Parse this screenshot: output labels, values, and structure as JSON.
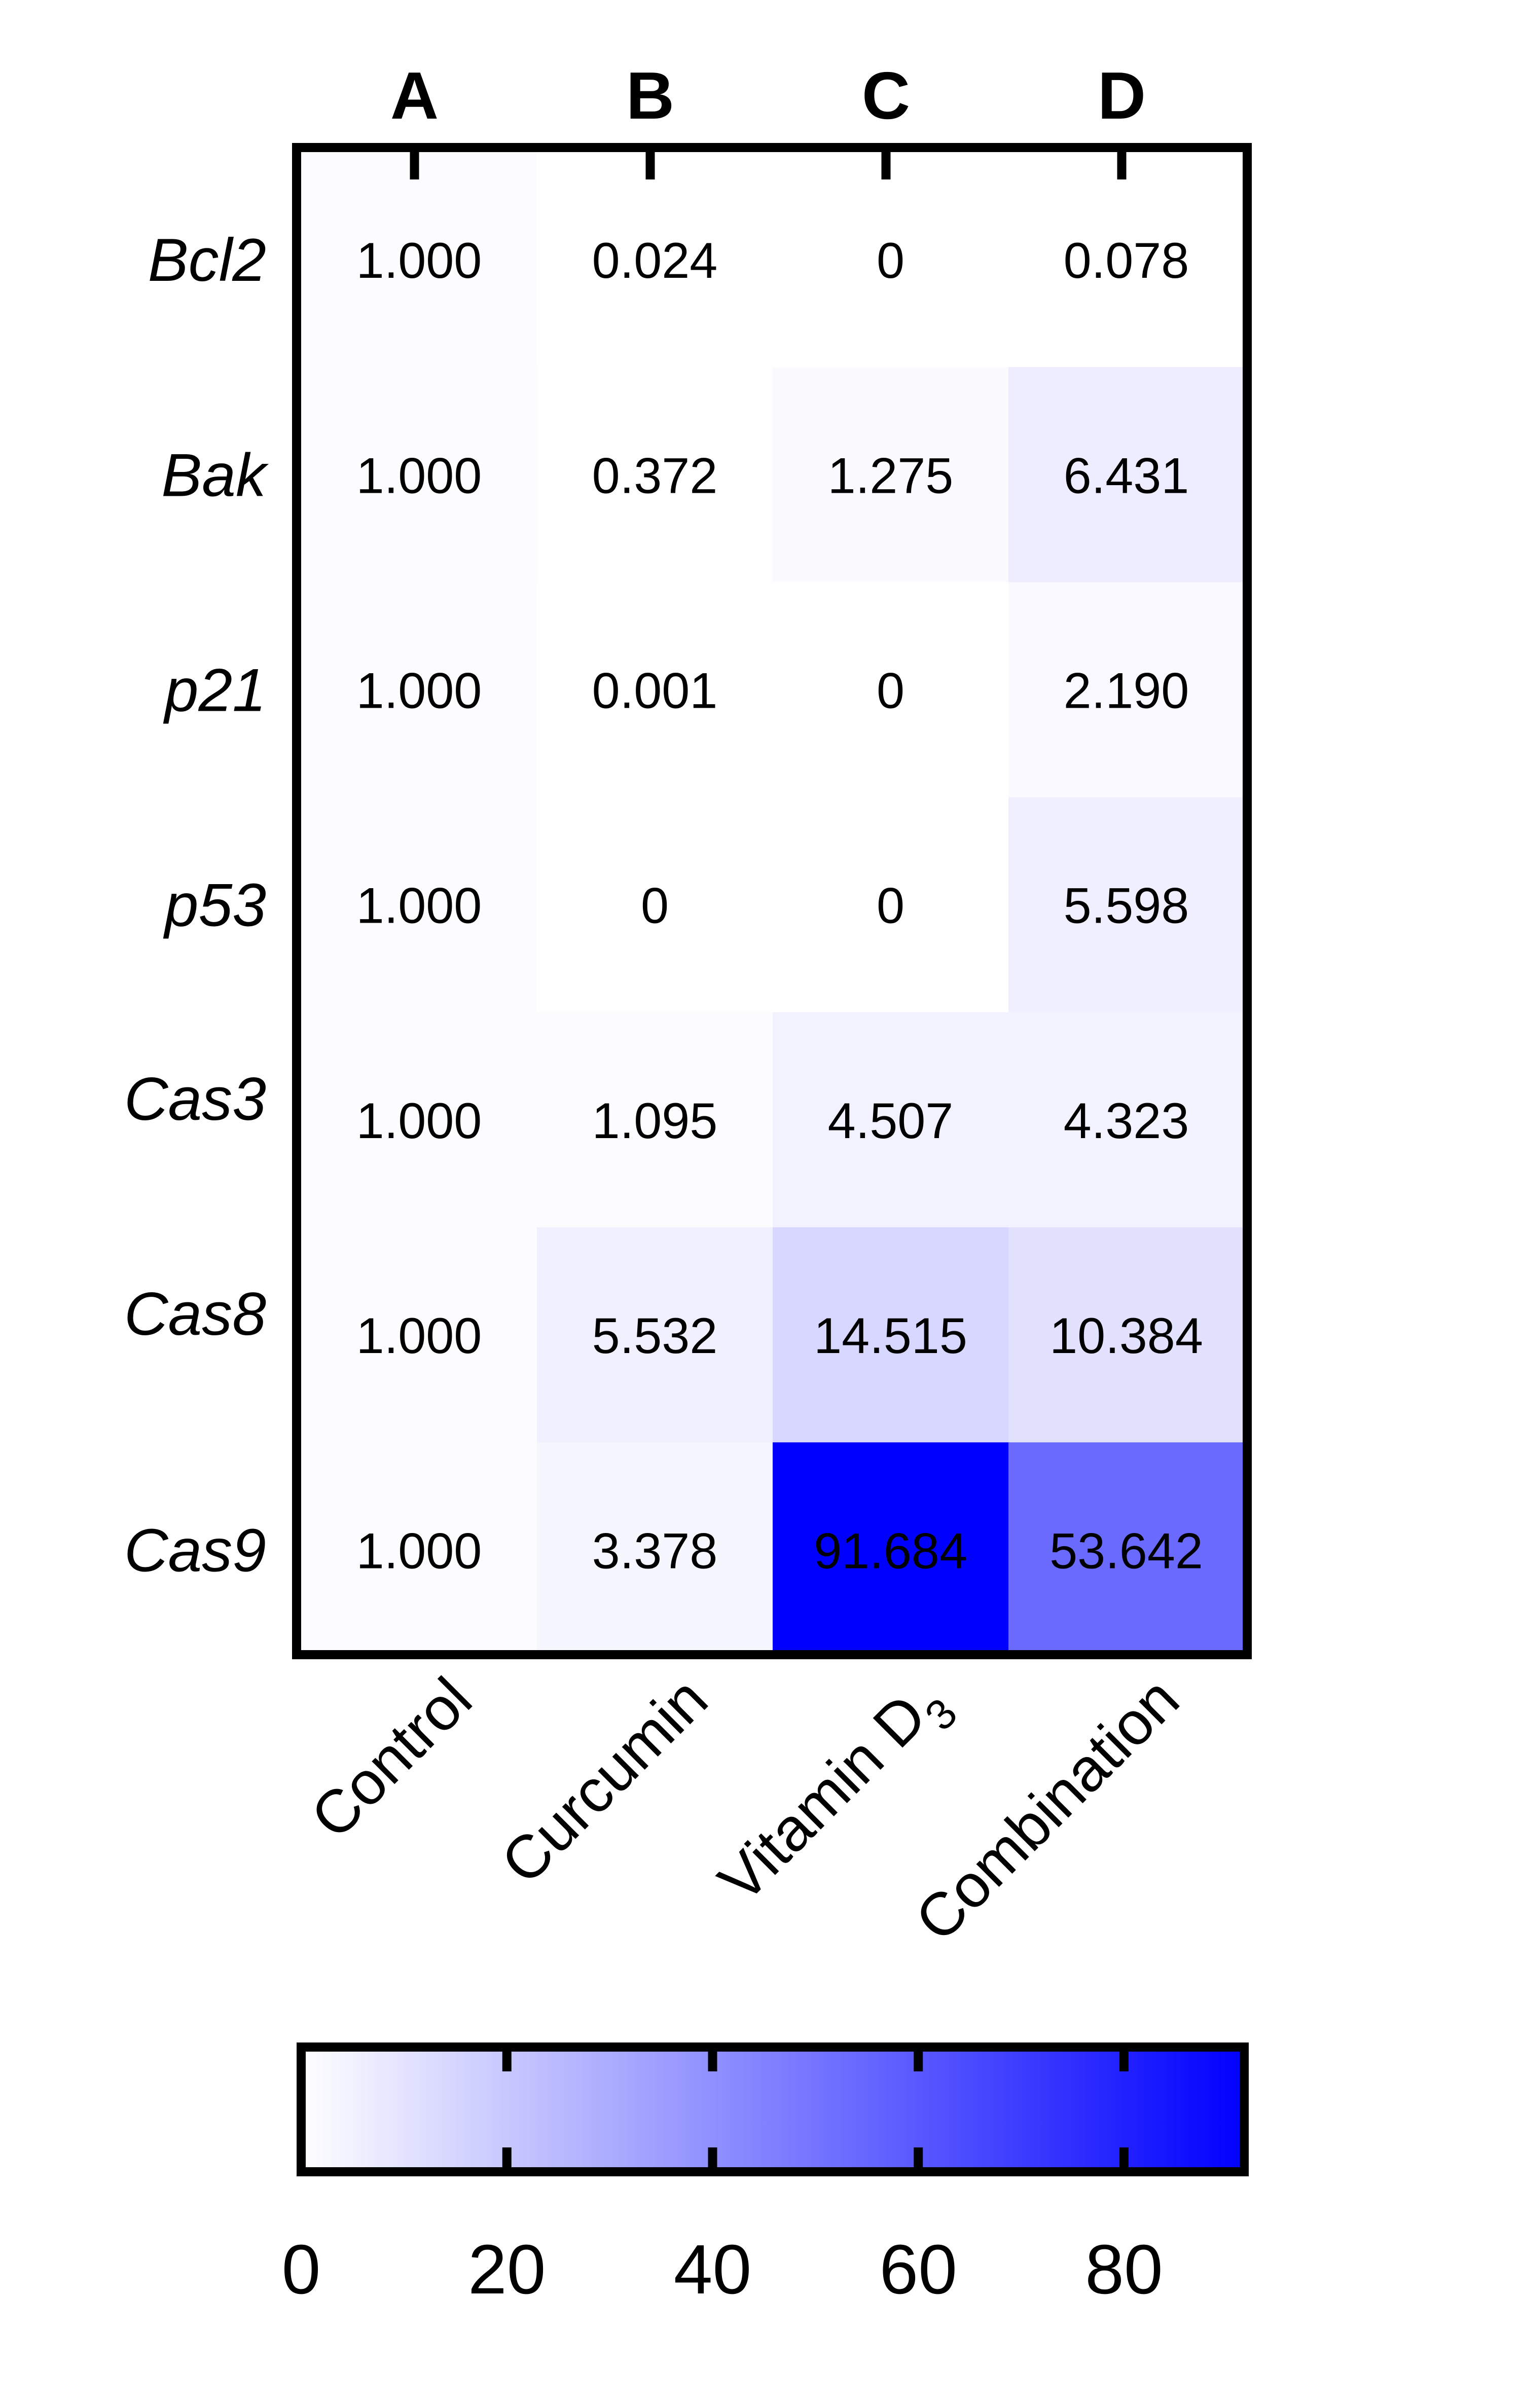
{
  "chart_data": {
    "type": "heatmap",
    "column_letters": [
      "A",
      "B",
      "C",
      "D"
    ],
    "columns": [
      "Control",
      "Curcumin",
      "Vitamin D",
      "Combination"
    ],
    "column_subscripts": [
      "",
      "",
      "3",
      ""
    ],
    "rows": [
      "Bcl2",
      "Bak",
      "p21",
      "p53",
      "Cas3",
      "Cas8",
      "Cas9"
    ],
    "values": [
      [
        1.0,
        0.024,
        0,
        0.078
      ],
      [
        1.0,
        0.372,
        1.275,
        6.431
      ],
      [
        1.0,
        0.001,
        0,
        2.19
      ],
      [
        1.0,
        0,
        0,
        5.598
      ],
      [
        1.0,
        1.095,
        4.507,
        4.323
      ],
      [
        1.0,
        5.532,
        14.515,
        10.384
      ],
      [
        1.0,
        3.378,
        91.684,
        53.642
      ]
    ],
    "value_labels": [
      [
        "1.000",
        "0.024",
        "0",
        "0.078"
      ],
      [
        "1.000",
        "0.372",
        "1.275",
        "6.431"
      ],
      [
        "1.000",
        "0.001",
        "0",
        "2.190"
      ],
      [
        "1.000",
        "0",
        "0",
        "5.598"
      ],
      [
        "1.000",
        "1.095",
        "4.507",
        "4.323"
      ],
      [
        "1.000",
        "5.532",
        "14.515",
        "10.384"
      ],
      [
        "1.000",
        "3.378",
        "91.684",
        "53.642"
      ]
    ],
    "colorbar": {
      "range": [
        0,
        91.684
      ],
      "ticks": [
        0,
        20,
        40,
        60,
        80
      ],
      "tick_labels": [
        "0",
        "20",
        "40",
        "60",
        "80"
      ],
      "color_low": "#ffffff",
      "color_high": "#0000ff",
      "placement": "bottom"
    }
  }
}
